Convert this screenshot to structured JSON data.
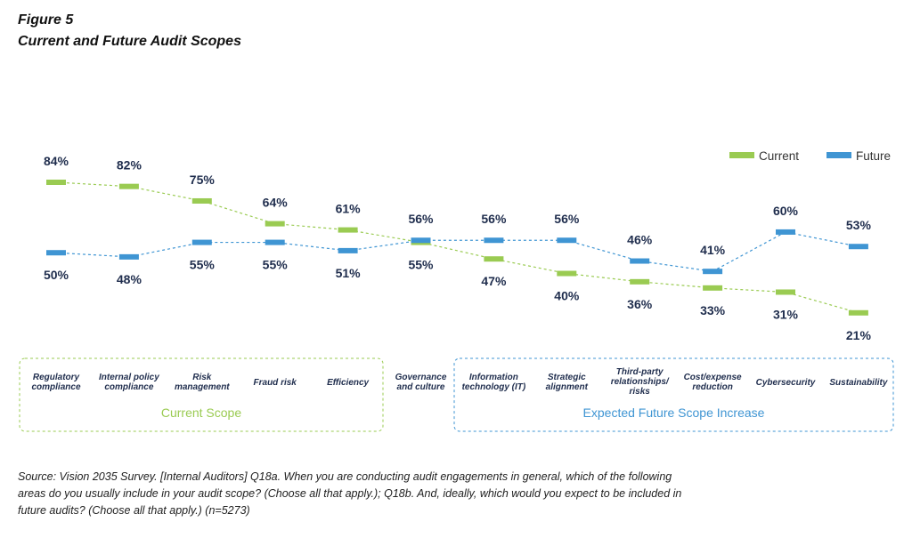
{
  "figure": {
    "label": "Figure 5",
    "title": "Current and Future Audit Scopes"
  },
  "colors": {
    "current": "#9acb52",
    "future": "#3f95d3",
    "text": "#1f2d4d"
  },
  "chart_data": {
    "type": "line",
    "style": "dashed lines with bar-shaped markers",
    "categories": [
      "Regulatory compliance",
      "Internal policy compliance",
      "Risk management",
      "Fraud risk",
      "Efficiency",
      "Governance and culture",
      "Information technology (IT)",
      "Strategic alignment",
      "Third-party relationships/ risks",
      "Cost/expense reduction",
      "Cybersecurity",
      "Sustainability"
    ],
    "category_lines": [
      [
        "Regulatory",
        "compliance"
      ],
      [
        "Internal policy",
        "compliance"
      ],
      [
        "Risk",
        "management"
      ],
      [
        "Fraud risk"
      ],
      [
        "Efficiency"
      ],
      [
        "Governance",
        "and culture"
      ],
      [
        "Information",
        "technology (IT)"
      ],
      [
        "Strategic",
        "alignment"
      ],
      [
        "Third-party",
        "relationships/",
        "risks"
      ],
      [
        "Cost/expense",
        "reduction"
      ],
      [
        "Cybersecurity"
      ],
      [
        "Sustainability"
      ]
    ],
    "series": [
      {
        "name": "Current",
        "values": [
          84,
          82,
          75,
          64,
          61,
          55,
          47,
          40,
          36,
          33,
          31,
          21
        ]
      },
      {
        "name": "Future",
        "values": [
          50,
          48,
          55,
          55,
          51,
          56,
          56,
          56,
          46,
          41,
          60,
          53
        ]
      }
    ],
    "value_suffix": "%",
    "legend_position": "top-right",
    "groups": [
      {
        "label": "Current Scope",
        "range": [
          0,
          5
        ]
      },
      {
        "label": "Expected Future Scope Increase",
        "range": [
          6,
          11
        ]
      }
    ],
    "grid": false
  },
  "source_note": "Source: Vision 2035 Survey. [Internal Auditors] Q18a. When you are conducting audit engagements in general, which of the following areas do you usually include in your audit scope? (Choose all that apply.); Q18b. And, ideally, which would you expect to be included in future audits? (Choose all that apply.) (n=5273)"
}
